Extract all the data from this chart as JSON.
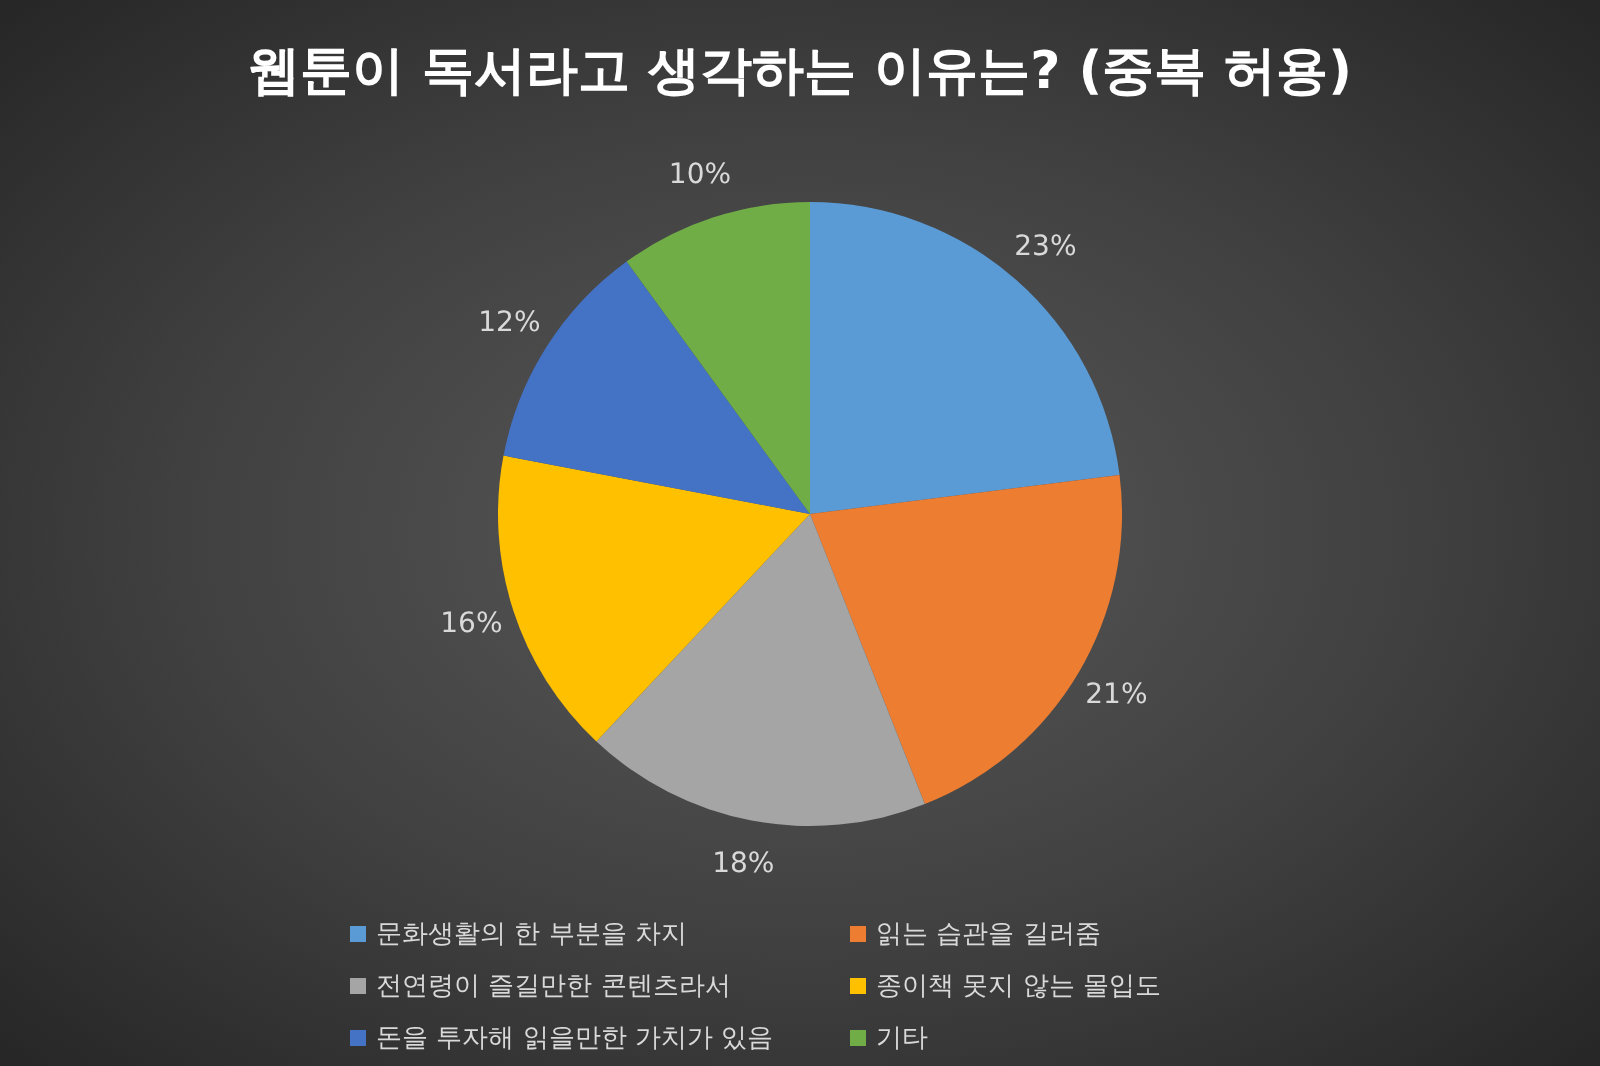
{
  "chart_data": {
    "type": "pie",
    "title": "웹툰이 독서라고 생각하는 이유는? (중복 허용)",
    "categories": [
      "문화생활의 한 부분을 차지",
      "읽는 습관을 길러줌",
      "전연령이 즐길만한 콘텐츠라서",
      "종이책 못지 않는 몰입도",
      "돈을 투자해 읽을만한 가치가 있음",
      "기타"
    ],
    "values": [
      23,
      21,
      18,
      16,
      12,
      10
    ],
    "colors": [
      "#5b9bd5",
      "#ed7d31",
      "#a5a5a5",
      "#ffc000",
      "#4472c4",
      "#70ad47"
    ],
    "value_labels": [
      "23%",
      "21%",
      "18%",
      "16%",
      "12%",
      "10%"
    ],
    "legend": "bottom"
  }
}
